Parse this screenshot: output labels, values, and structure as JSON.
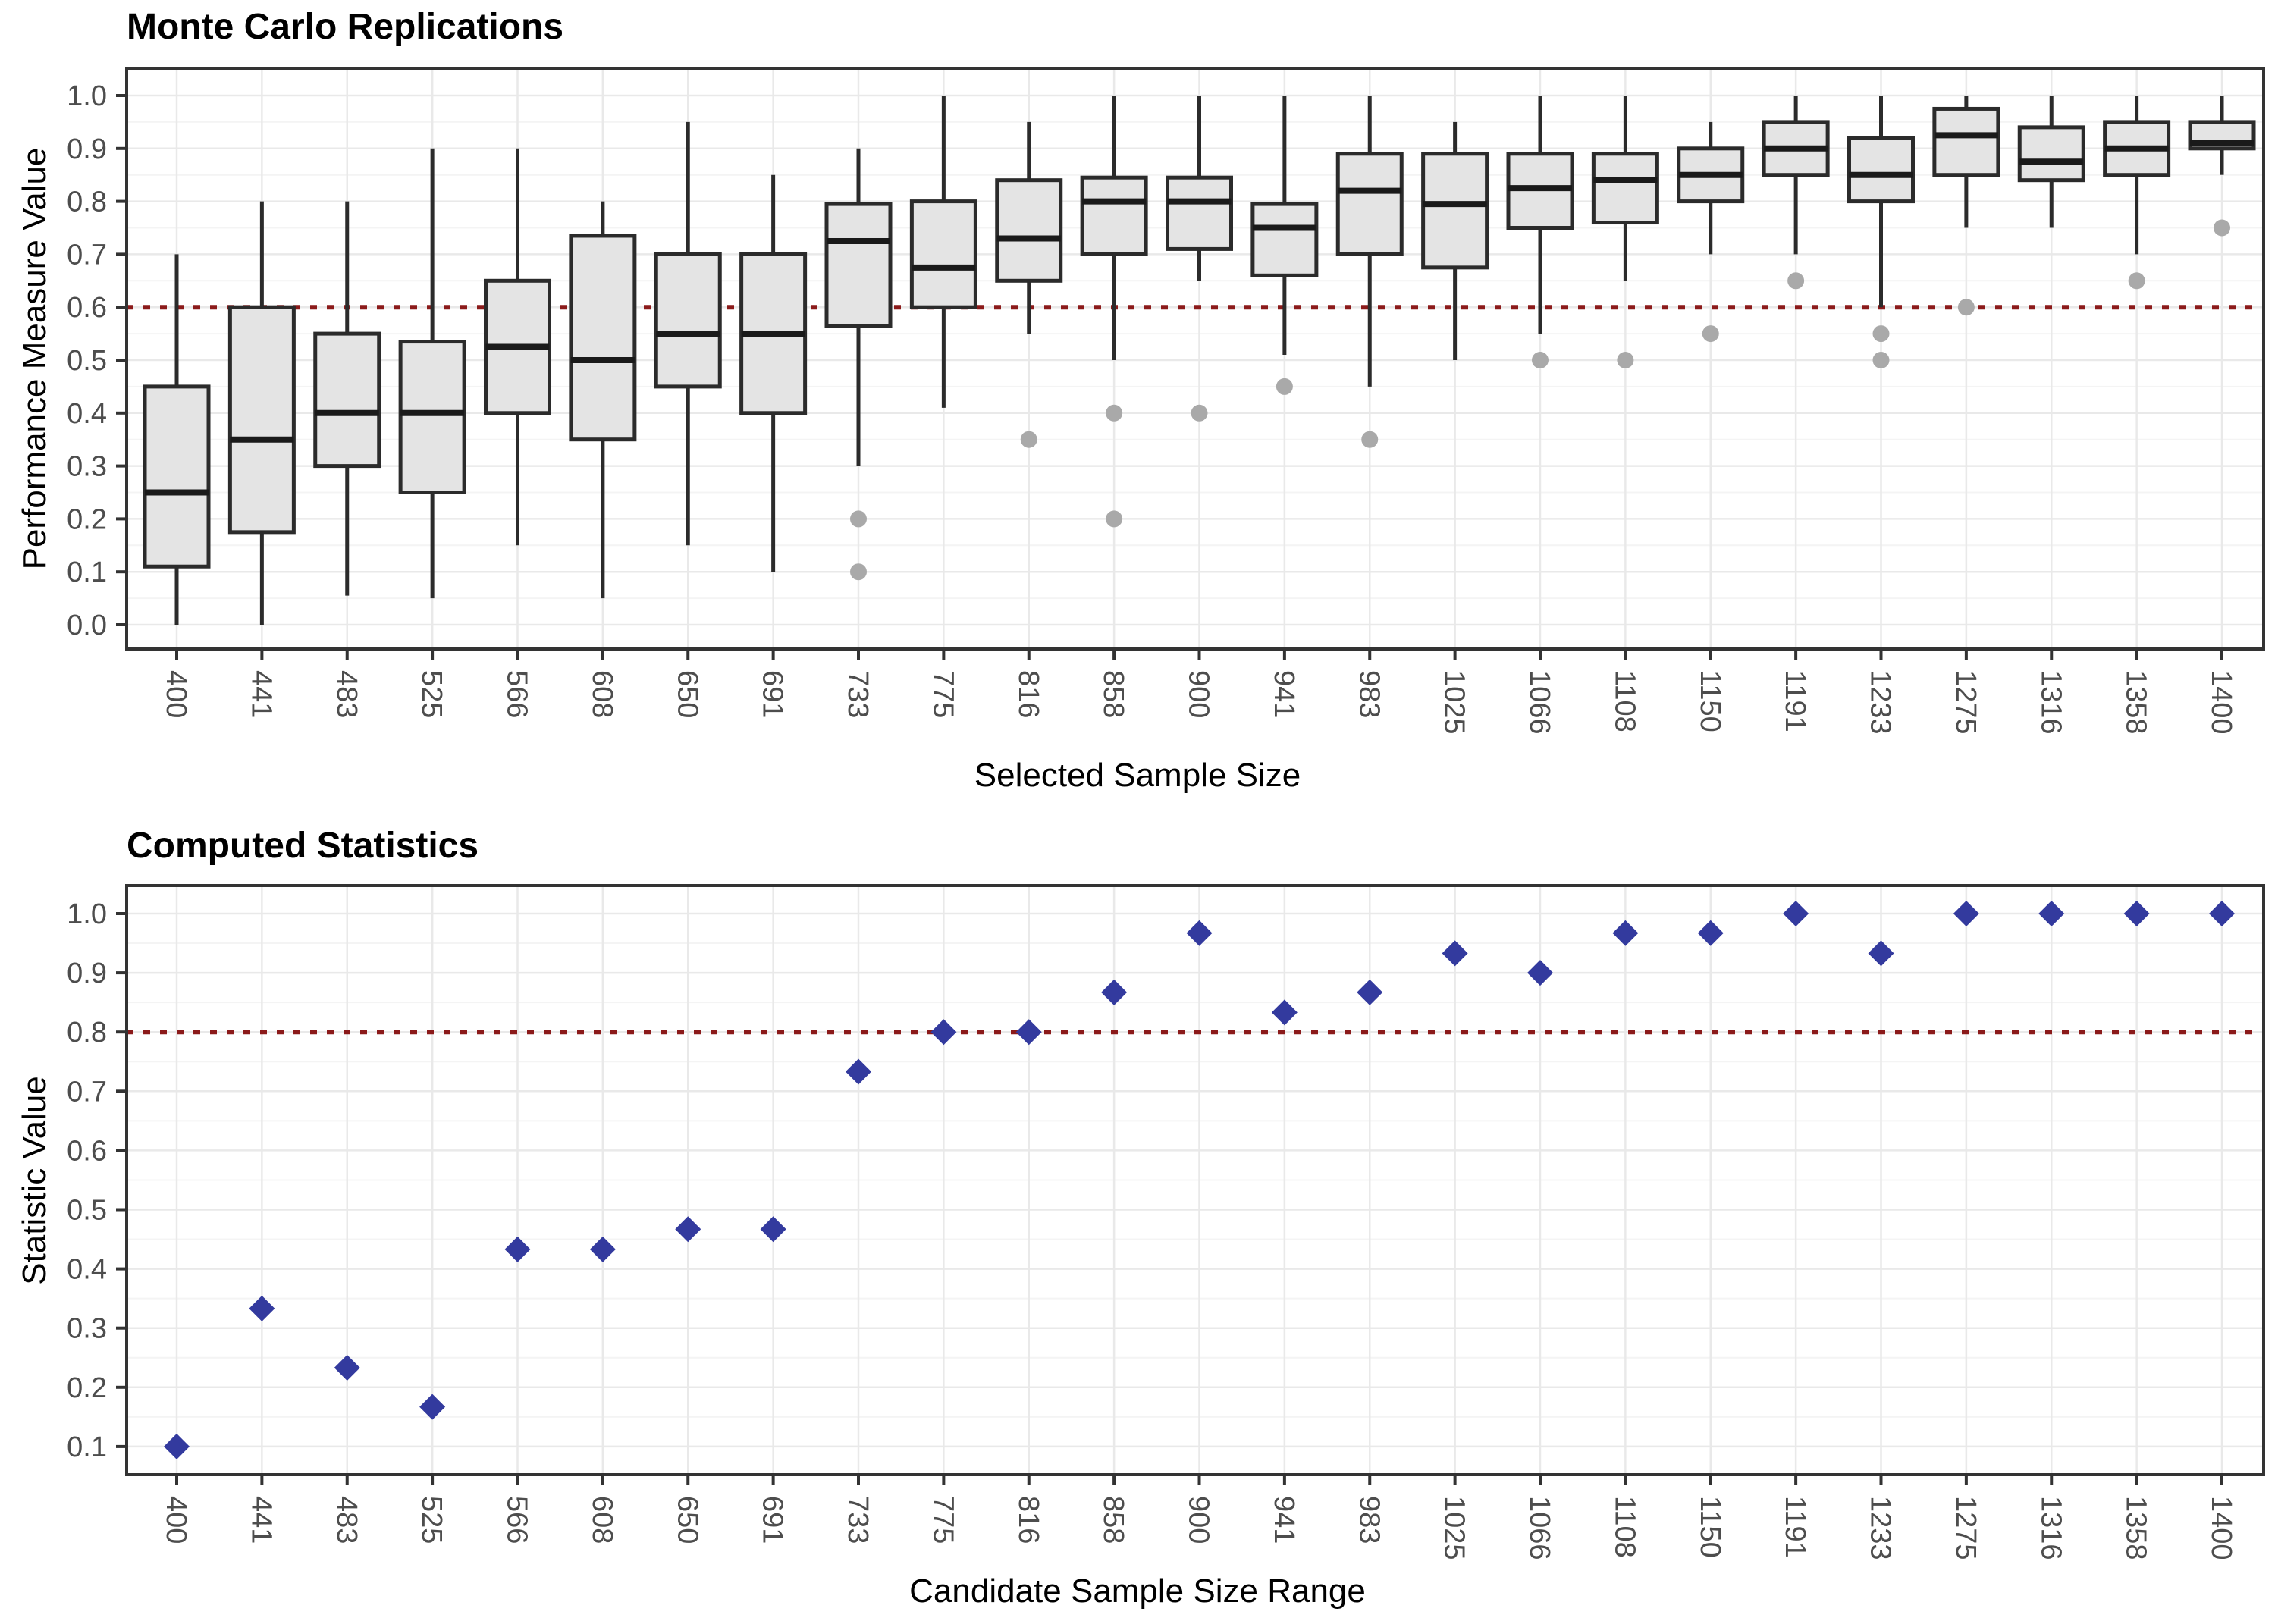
{
  "colors": {
    "background": "#FFFFFF",
    "box_fill": "#E4E4E4",
    "box_stroke": "#2B2B2B",
    "median": "#1A1A1A",
    "outlier": "#A9A9A9",
    "reference_line": "#8B1A1A",
    "diamond": "#333A9E",
    "grid_major": "#E9E9E9",
    "grid_minor": "#F4F4F4",
    "axis_line": "#333333",
    "tick_text": "#4D4D4D"
  },
  "chart_data": [
    {
      "type": "box",
      "title": "Monte Carlo Replications",
      "xlabel": "Selected Sample Size",
      "ylabel": "Performance Measure Value",
      "ylim": [
        0.0,
        1.0
      ],
      "grid": true,
      "legend": "none",
      "reference_line": 0.6,
      "reference_line_style": "dotted",
      "y_ticks": [
        "0.0",
        "0.1",
        "0.2",
        "0.3",
        "0.4",
        "0.5",
        "0.6",
        "0.7",
        "0.8",
        "0.9",
        "1.0"
      ],
      "categories": [
        "400",
        "441",
        "483",
        "525",
        "566",
        "608",
        "650",
        "691",
        "733",
        "775",
        "816",
        "858",
        "900",
        "941",
        "983",
        "1025",
        "1066",
        "1108",
        "1150",
        "1191",
        "1233",
        "1275",
        "1316",
        "1358",
        "1400"
      ],
      "boxes": [
        {
          "category": "400",
          "whisker_low": 0.0,
          "q1": 0.11,
          "median": 0.25,
          "q3": 0.45,
          "whisker_high": 0.7,
          "outliers": []
        },
        {
          "category": "441",
          "whisker_low": 0.0,
          "q1": 0.175,
          "median": 0.35,
          "q3": 0.6,
          "whisker_high": 0.8,
          "outliers": []
        },
        {
          "category": "483",
          "whisker_low": 0.055,
          "q1": 0.3,
          "median": 0.4,
          "q3": 0.55,
          "whisker_high": 0.8,
          "outliers": []
        },
        {
          "category": "525",
          "whisker_low": 0.05,
          "q1": 0.25,
          "median": 0.4,
          "q3": 0.535,
          "whisker_high": 0.9,
          "outliers": []
        },
        {
          "category": "566",
          "whisker_low": 0.15,
          "q1": 0.4,
          "median": 0.525,
          "q3": 0.65,
          "whisker_high": 0.9,
          "outliers": []
        },
        {
          "category": "608",
          "whisker_low": 0.05,
          "q1": 0.35,
          "median": 0.5,
          "q3": 0.735,
          "whisker_high": 0.8,
          "outliers": []
        },
        {
          "category": "650",
          "whisker_low": 0.15,
          "q1": 0.45,
          "median": 0.55,
          "q3": 0.7,
          "whisker_high": 0.95,
          "outliers": []
        },
        {
          "category": "691",
          "whisker_low": 0.1,
          "q1": 0.4,
          "median": 0.55,
          "q3": 0.7,
          "whisker_high": 0.85,
          "outliers": []
        },
        {
          "category": "733",
          "whisker_low": 0.3,
          "q1": 0.565,
          "median": 0.725,
          "q3": 0.795,
          "whisker_high": 0.9,
          "outliers": [
            0.2,
            0.1
          ]
        },
        {
          "category": "775",
          "whisker_low": 0.41,
          "q1": 0.6,
          "median": 0.675,
          "q3": 0.8,
          "whisker_high": 1.0,
          "outliers": []
        },
        {
          "category": "816",
          "whisker_low": 0.55,
          "q1": 0.65,
          "median": 0.73,
          "q3": 0.84,
          "whisker_high": 0.95,
          "outliers": [
            0.35
          ]
        },
        {
          "category": "858",
          "whisker_low": 0.5,
          "q1": 0.7,
          "median": 0.8,
          "q3": 0.845,
          "whisker_high": 1.0,
          "outliers": [
            0.4,
            0.2
          ]
        },
        {
          "category": "900",
          "whisker_low": 0.65,
          "q1": 0.71,
          "median": 0.8,
          "q3": 0.845,
          "whisker_high": 1.0,
          "outliers": [
            0.4
          ]
        },
        {
          "category": "941",
          "whisker_low": 0.51,
          "q1": 0.66,
          "median": 0.75,
          "q3": 0.795,
          "whisker_high": 1.0,
          "outliers": [
            0.45
          ]
        },
        {
          "category": "983",
          "whisker_low": 0.45,
          "q1": 0.7,
          "median": 0.82,
          "q3": 0.89,
          "whisker_high": 1.0,
          "outliers": [
            0.35
          ]
        },
        {
          "category": "1025",
          "whisker_low": 0.5,
          "q1": 0.675,
          "median": 0.795,
          "q3": 0.89,
          "whisker_high": 0.95,
          "outliers": []
        },
        {
          "category": "1066",
          "whisker_low": 0.55,
          "q1": 0.75,
          "median": 0.825,
          "q3": 0.89,
          "whisker_high": 1.0,
          "outliers": [
            0.5
          ]
        },
        {
          "category": "1108",
          "whisker_low": 0.65,
          "q1": 0.76,
          "median": 0.84,
          "q3": 0.89,
          "whisker_high": 1.0,
          "outliers": [
            0.5
          ]
        },
        {
          "category": "1150",
          "whisker_low": 0.7,
          "q1": 0.8,
          "median": 0.85,
          "q3": 0.9,
          "whisker_high": 0.95,
          "outliers": [
            0.55
          ]
        },
        {
          "category": "1191",
          "whisker_low": 0.7,
          "q1": 0.85,
          "median": 0.9,
          "q3": 0.95,
          "whisker_high": 1.0,
          "outliers": [
            0.65
          ]
        },
        {
          "category": "1233",
          "whisker_low": 0.6,
          "q1": 0.8,
          "median": 0.85,
          "q3": 0.92,
          "whisker_high": 1.0,
          "outliers": [
            0.55,
            0.5
          ]
        },
        {
          "category": "1275",
          "whisker_low": 0.75,
          "q1": 0.85,
          "median": 0.925,
          "q3": 0.975,
          "whisker_high": 1.0,
          "outliers": [
            0.6
          ]
        },
        {
          "category": "1316",
          "whisker_low": 0.75,
          "q1": 0.84,
          "median": 0.875,
          "q3": 0.94,
          "whisker_high": 1.0,
          "outliers": []
        },
        {
          "category": "1358",
          "whisker_low": 0.7,
          "q1": 0.85,
          "median": 0.9,
          "q3": 0.95,
          "whisker_high": 1.0,
          "outliers": [
            0.65
          ]
        },
        {
          "category": "1400",
          "whisker_low": 0.85,
          "q1": 0.9,
          "median": 0.91,
          "q3": 0.95,
          "whisker_high": 1.0,
          "outliers": [
            0.75
          ]
        }
      ]
    },
    {
      "type": "scatter",
      "title": "Computed Statistics",
      "xlabel": "Candidate Sample Size Range",
      "ylabel": "Statistic Value",
      "ylim": [
        0.05,
        1.0
      ],
      "grid": true,
      "legend": "none",
      "marker": "diamond",
      "reference_line": 0.8,
      "reference_line_style": "dotted",
      "y_ticks": [
        "0.1",
        "0.2",
        "0.3",
        "0.4",
        "0.5",
        "0.6",
        "0.7",
        "0.8",
        "0.9",
        "1.0"
      ],
      "categories": [
        "400",
        "441",
        "483",
        "525",
        "566",
        "608",
        "650",
        "691",
        "733",
        "775",
        "816",
        "858",
        "900",
        "941",
        "983",
        "1025",
        "1066",
        "1108",
        "1150",
        "1191",
        "1233",
        "1275",
        "1316",
        "1358",
        "1400"
      ],
      "values": [
        0.1,
        0.333,
        0.233,
        0.167,
        0.433,
        0.433,
        0.467,
        0.467,
        0.733,
        0.8,
        0.8,
        0.867,
        0.967,
        0.833,
        0.867,
        0.933,
        0.9,
        0.967,
        0.967,
        1.0,
        0.933,
        1.0,
        1.0,
        1.0,
        1.0
      ]
    }
  ]
}
